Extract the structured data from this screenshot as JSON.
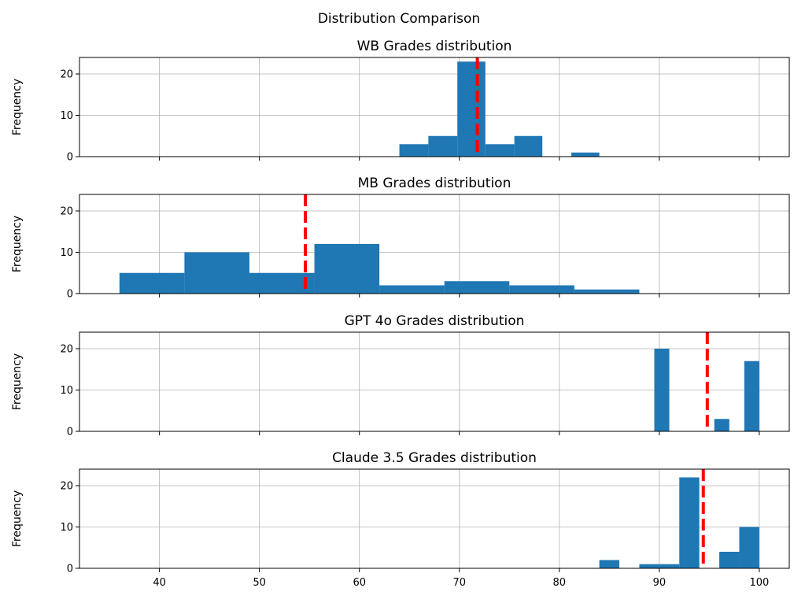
{
  "chart_data": {
    "type": "bar",
    "suptitle": "Distribution Comparison",
    "shared_x": true,
    "xlim": [
      32,
      103
    ],
    "xticks": [
      40,
      50,
      60,
      70,
      80,
      90,
      100
    ],
    "grid": true,
    "bar_color": "#1f77b4",
    "mean_line_color": "#ff0000",
    "mean_line_style": "dashed",
    "panels": [
      {
        "title": "WB Grades distribution",
        "ylabel": "Frequency",
        "ylim": [
          0,
          24
        ],
        "yticks": [
          0,
          10,
          20
        ],
        "mean": 71.8,
        "bins": [
          {
            "x0": 64.0,
            "x1": 66.9,
            "count": 3
          },
          {
            "x0": 66.9,
            "x1": 69.8,
            "count": 5
          },
          {
            "x0": 69.8,
            "x1": 72.6,
            "count": 23
          },
          {
            "x0": 72.6,
            "x1": 75.5,
            "count": 3
          },
          {
            "x0": 75.5,
            "x1": 78.3,
            "count": 5
          },
          {
            "x0": 78.3,
            "x1": 81.2,
            "count": 0
          },
          {
            "x0": 81.2,
            "x1": 84.0,
            "count": 1
          }
        ]
      },
      {
        "title": "MB Grades distribution",
        "ylabel": "Frequency",
        "ylim": [
          0,
          24
        ],
        "yticks": [
          0,
          10,
          20
        ],
        "mean": 54.6,
        "bins": [
          {
            "x0": 36.0,
            "x1": 42.5,
            "count": 5
          },
          {
            "x0": 42.5,
            "x1": 49.0,
            "count": 10
          },
          {
            "x0": 49.0,
            "x1": 55.5,
            "count": 5
          },
          {
            "x0": 55.5,
            "x1": 62.0,
            "count": 12
          },
          {
            "x0": 62.0,
            "x1": 68.5,
            "count": 2
          },
          {
            "x0": 68.5,
            "x1": 75.0,
            "count": 3
          },
          {
            "x0": 75.0,
            "x1": 81.5,
            "count": 2
          },
          {
            "x0": 81.5,
            "x1": 88.0,
            "count": 1
          }
        ]
      },
      {
        "title": "GPT 4o Grades distribution",
        "ylabel": "Frequency",
        "ylim": [
          0,
          24
        ],
        "yticks": [
          0,
          10,
          20
        ],
        "mean": 94.8,
        "bins": [
          {
            "x0": 89.5,
            "x1": 91.0,
            "count": 20
          },
          {
            "x0": 95.5,
            "x1": 97.0,
            "count": 3
          },
          {
            "x0": 98.5,
            "x1": 100.0,
            "count": 17
          }
        ]
      },
      {
        "title": "Claude 3.5 Grades distribution",
        "ylabel": "Frequency",
        "ylim": [
          0,
          24
        ],
        "yticks": [
          0,
          10,
          20
        ],
        "mean": 94.4,
        "bins": [
          {
            "x0": 84.0,
            "x1": 86.0,
            "count": 2
          },
          {
            "x0": 88.0,
            "x1": 90.0,
            "count": 1
          },
          {
            "x0": 90.0,
            "x1": 92.0,
            "count": 1
          },
          {
            "x0": 92.0,
            "x1": 94.0,
            "count": 22
          },
          {
            "x0": 96.0,
            "x1": 98.0,
            "count": 4
          },
          {
            "x0": 98.0,
            "x1": 100.0,
            "count": 10
          }
        ]
      }
    ]
  }
}
